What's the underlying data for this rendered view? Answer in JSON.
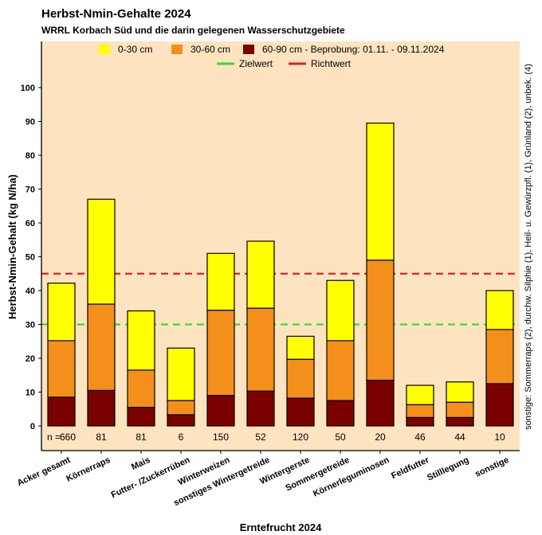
{
  "chart_data": {
    "type": "bar",
    "stacked": true,
    "title": "Herbst-Nmin-Gehalte 2024",
    "subtitle": "WRRL Korbach Süd und die darin gelegenen Wasserschutzgebiete",
    "xlabel": "Erntefrucht 2024",
    "ylabel": "Herbst-Nmin-Gehalt (kg N/ha)",
    "ylim": [
      0,
      105
    ],
    "yticks": [
      0,
      10,
      20,
      30,
      40,
      50,
      60,
      70,
      80,
      90,
      100
    ],
    "categories": [
      "Acker gesamt",
      "Körnerraps",
      "Mais",
      "Futter- /Zuckerrüben",
      "Winterweizen",
      "sonstiges Wintergetreide",
      "Wintergerste",
      "Sommergetreide",
      "Körnerleguminosen",
      "Feldfutter",
      "Stilllegung",
      "sonstige"
    ],
    "series": [
      {
        "name": "60-90 cm - Beprobung: 01.11. - 09.11.2024",
        "color": "#7b0000",
        "values": [
          8.5,
          10.5,
          5.5,
          3.3,
          9,
          10.3,
          8.2,
          7.5,
          13.5,
          2.5,
          2.5,
          12.5
        ]
      },
      {
        "name": "30-60 cm",
        "color": "#f38f1a",
        "values": [
          16.7,
          25.5,
          11,
          4.2,
          25.2,
          24.5,
          11.5,
          17.7,
          35.5,
          3.8,
          4.5,
          16
        ]
      },
      {
        "name": "0-30 cm",
        "color": "#ffff00",
        "values": [
          17,
          31,
          17.5,
          15.5,
          16.8,
          19.8,
          6.8,
          17.8,
          40.5,
          5.7,
          6,
          11.5
        ]
      }
    ],
    "legend_order": [
      "0-30 cm",
      "30-60 cm",
      "60-90 cm - Beprobung: 01.11. - 09.11.2024"
    ],
    "n_label": "n =",
    "n_values": [
      "660",
      "81",
      "81",
      "6",
      "150",
      "52",
      "120",
      "50",
      "20",
      "46",
      "44",
      "10"
    ],
    "reference_lines": [
      {
        "name": "Zielwert",
        "value": 30,
        "color": "#33dd33",
        "style": "dashed"
      },
      {
        "name": "Richtwert",
        "value": 45,
        "color": "#e02020",
        "style": "dashed"
      }
    ],
    "side_note": "sonstige: Sommerraps (2), durchw. Silphie (1), Heil- u. Gewürzpfl. (1), Grünland (2), unbek. (4)",
    "panel_background": "#fde3bf",
    "grid": false,
    "legend_position": "top"
  }
}
